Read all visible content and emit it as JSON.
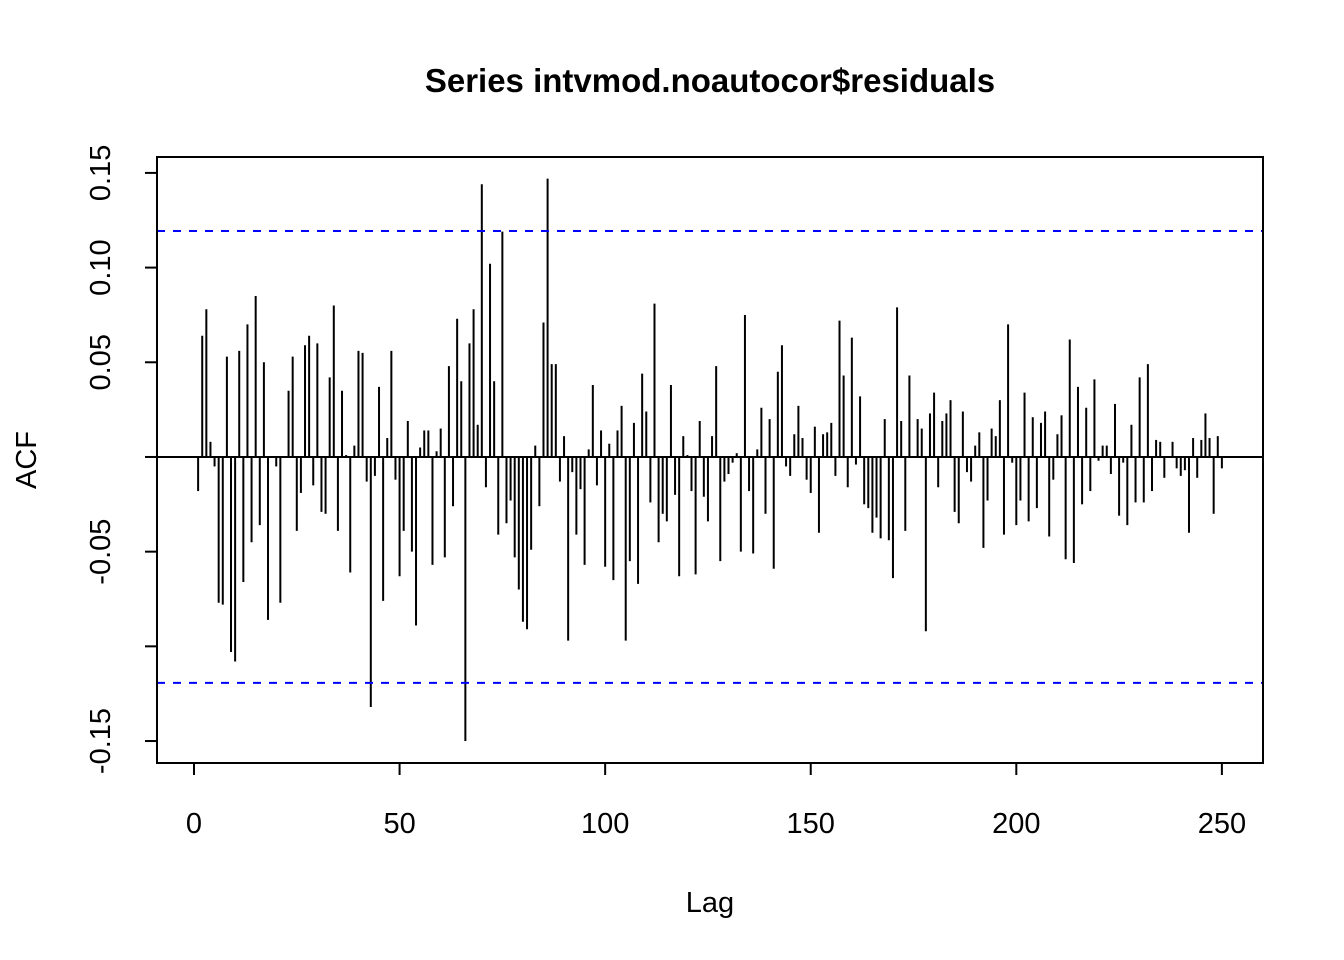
{
  "chart_data": {
    "type": "bar",
    "title": "Series intvmod.noautocor$residuals",
    "xlabel": "Lag",
    "ylabel": "ACF",
    "xlim": [
      -9,
      260
    ],
    "ylim": [
      -0.1616,
      0.1584
    ],
    "xticks": [
      0,
      50,
      100,
      150,
      200,
      250
    ],
    "xtick_labels": [
      "0",
      "50",
      "100",
      "150",
      "200",
      "250"
    ],
    "yticks": [
      -0.15,
      -0.1,
      -0.05,
      0.0,
      0.05,
      0.1,
      0.15
    ],
    "ytick_labels": [
      {
        "value": -0.15,
        "label": "-0.15"
      },
      {
        "value": -0.05,
        "label": "-0.05"
      },
      {
        "value": 0.05,
        "label": "0.05"
      },
      {
        "value": 0.1,
        "label": "0.10"
      },
      {
        "value": 0.15,
        "label": "0.15"
      }
    ],
    "confidence_bound": 0.1193,
    "colors": {
      "bars": "#000000",
      "confidence_lines": "#0000ff"
    },
    "grid": false,
    "lag_start": 1,
    "values": [
      -0.018,
      0.064,
      0.078,
      0.008,
      -0.005,
      -0.077,
      -0.078,
      0.053,
      -0.103,
      -0.108,
      0.056,
      -0.066,
      0.07,
      -0.045,
      0.085,
      -0.036,
      0.05,
      -0.086,
      0,
      -0.005,
      -0.077,
      0,
      0.035,
      0.053,
      -0.039,
      -0.019,
      0.059,
      0.064,
      -0.015,
      0.06,
      -0.029,
      -0.03,
      0.042,
      0.08,
      -0.039,
      0.035,
      0.001,
      -0.061,
      0.006,
      0.056,
      0.055,
      -0.013,
      -0.132,
      -0.01,
      0.037,
      -0.076,
      0.01,
      0.056,
      -0.012,
      -0.063,
      -0.039,
      0.019,
      -0.05,
      -0.089,
      0.005,
      0.014,
      0.014,
      -0.057,
      0.003,
      0.015,
      -0.053,
      0.048,
      -0.026,
      0.073,
      0.04,
      -0.15,
      0.06,
      0.078,
      0.017,
      0.144,
      -0.016,
      0.102,
      0.04,
      -0.041,
      0.119,
      -0.035,
      -0.023,
      -0.053,
      -0.07,
      -0.087,
      -0.091,
      -0.049,
      0.006,
      -0.026,
      0.071,
      0.147,
      0.049,
      0.049,
      -0.013,
      0.011,
      -0.097,
      -0.008,
      -0.041,
      -0.017,
      -0.057,
      0.004,
      0.038,
      -0.015,
      0.014,
      -0.058,
      0.007,
      -0.065,
      0.014,
      0.027,
      -0.097,
      -0.055,
      0.018,
      -0.067,
      0.044,
      0.024,
      -0.024,
      0.081,
      -0.045,
      -0.03,
      -0.034,
      0.038,
      -0.02,
      -0.063,
      0.011,
      0.001,
      -0.018,
      -0.062,
      0.019,
      -0.021,
      -0.034,
      0.011,
      0.048,
      -0.055,
      -0.013,
      -0.009,
      -0.003,
      0.002,
      -0.05,
      0.075,
      -0.018,
      -0.051,
      0.004,
      0.026,
      -0.03,
      0.02,
      -0.059,
      0.045,
      0.059,
      -0.005,
      -0.01,
      0.012,
      0.027,
      0.01,
      -0.012,
      -0.019,
      0.016,
      -0.04,
      0.012,
      0.013,
      0.018,
      -0.01,
      0.072,
      0.043,
      -0.016,
      0.063,
      -0.004,
      0.032,
      -0.025,
      -0.027,
      -0.04,
      -0.032,
      -0.043,
      0.02,
      -0.044,
      -0.064,
      0.079,
      0.019,
      -0.039,
      0.043,
      0,
      0.02,
      0.015,
      -0.092,
      0.023,
      0.034,
      -0.016,
      0.019,
      0.023,
      0.03,
      -0.029,
      -0.035,
      0.024,
      -0.008,
      -0.013,
      0.006,
      0.013,
      -0.048,
      -0.023,
      0.015,
      0.011,
      0.03,
      -0.041,
      0.07,
      -0.003,
      -0.036,
      -0.023,
      0.034,
      -0.034,
      0.021,
      -0.027,
      0.018,
      0.024,
      -0.042,
      -0.012,
      0.012,
      0.022,
      -0.054,
      0.062,
      -0.056,
      0.037,
      -0.025,
      0.026,
      -0.018,
      0.041,
      -0.002,
      0.006,
      0.006,
      -0.009,
      0.028,
      -0.031,
      -0.003,
      -0.036,
      0.017,
      -0.024,
      0.042,
      -0.024,
      0.049,
      -0.018,
      0.009,
      0.008,
      -0.011,
      0,
      0.008,
      -0.006,
      -0.01,
      -0.007,
      -0.04,
      0.01,
      -0.011,
      0.009,
      0.023,
      0.01,
      -0.03,
      0.011,
      -0.006
    ]
  }
}
